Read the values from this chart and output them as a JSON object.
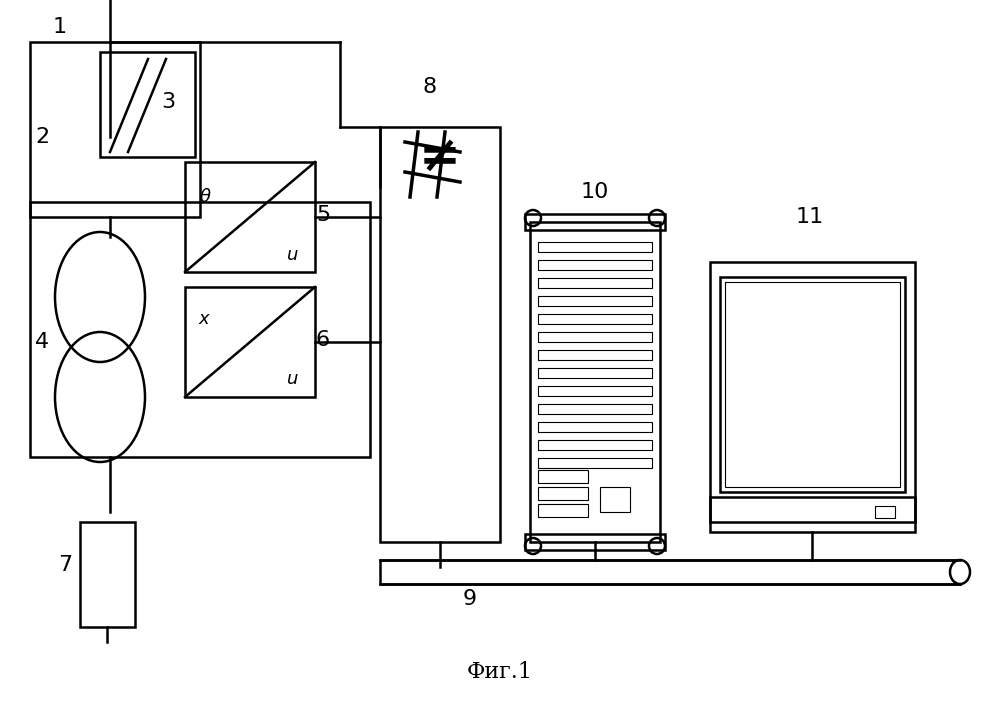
{
  "title": "Фиг.1",
  "bg_color": "#ffffff",
  "line_color": "#000000",
  "lw": 1.8
}
